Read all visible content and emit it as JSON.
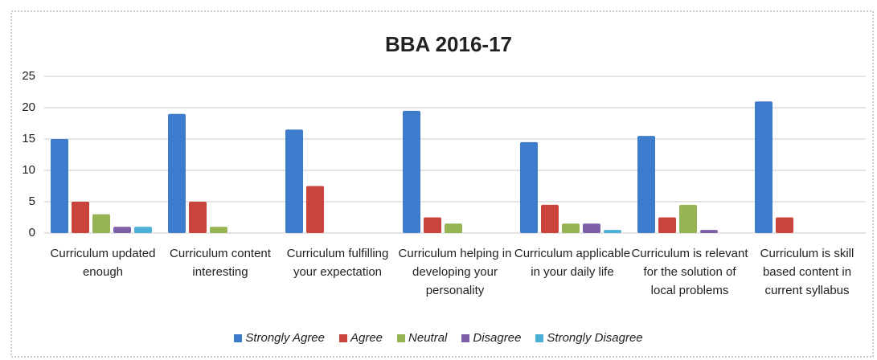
{
  "chart_data": {
    "type": "bar",
    "title": "BBA 2016-17",
    "categories": [
      "Curriculum updated enough",
      "Curriculum content interesting",
      "Curriculum fulfilling your expectation",
      "Curriculum helping in developing your personality",
      "Curriculum applicable in your daily life",
      "Curriculum is relevant for the solution of local problems",
      "Curriculum is skill based content in current syllabus"
    ],
    "series": [
      {
        "name": "Strongly Agree",
        "color": "#3d7ccc",
        "values": [
          15,
          19,
          16.5,
          19.5,
          14.5,
          15.5,
          21
        ]
      },
      {
        "name": "Agree",
        "color": "#c9443c",
        "values": [
          5,
          5,
          7.5,
          2.5,
          4.5,
          2.5,
          2.5
        ]
      },
      {
        "name": "Neutral",
        "color": "#95b454",
        "values": [
          3,
          1,
          0,
          1.5,
          1.5,
          4.5,
          0
        ]
      },
      {
        "name": "Disagree",
        "color": "#7d5fa8",
        "values": [
          1,
          0,
          0,
          0,
          1.5,
          0.5,
          0
        ]
      },
      {
        "name": "Strongly Disagree",
        "color": "#4bb0d6",
        "values": [
          1,
          0,
          0,
          0,
          0.5,
          0,
          0
        ]
      }
    ],
    "ylim": [
      0,
      25
    ],
    "yticks": [
      0,
      5,
      10,
      15,
      20,
      25
    ],
    "grid": true,
    "legend": "bottom"
  }
}
